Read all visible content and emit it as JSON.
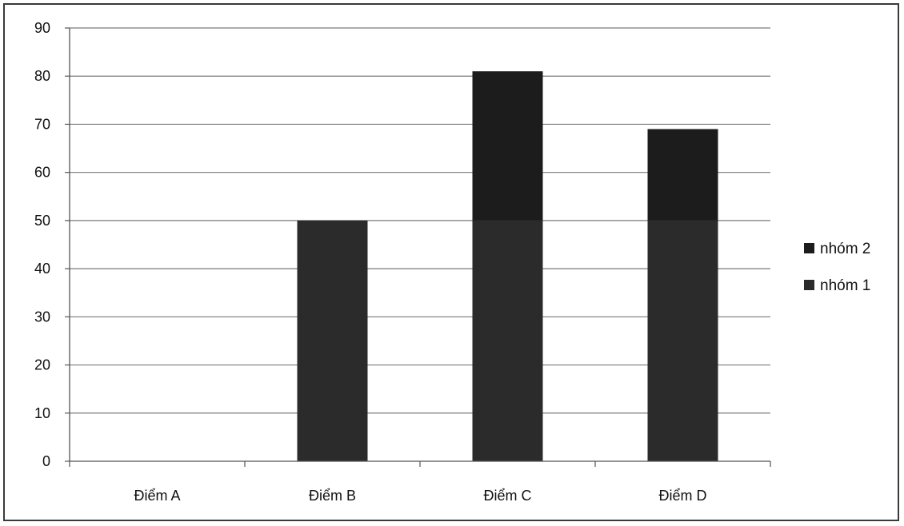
{
  "chart_data": {
    "type": "bar",
    "stacked": true,
    "categories": [
      "Điểm A",
      "Điểm B",
      "Điểm C",
      "Điểm D"
    ],
    "series": [
      {
        "name": "nhóm 1",
        "values": [
          0,
          50,
          50,
          50
        ],
        "color": "#2b2b2b"
      },
      {
        "name": "nhóm 2",
        "values": [
          0,
          0,
          31,
          19
        ],
        "color": "#1c1c1c"
      }
    ],
    "legend_order": [
      "nhóm 2",
      "nhóm 1"
    ],
    "ylim": [
      0,
      90
    ],
    "yticks": [
      0,
      10,
      20,
      30,
      40,
      50,
      60,
      70,
      80,
      90
    ],
    "grid": true,
    "legend_position": "right",
    "title": "",
    "xlabel": "",
    "ylabel": ""
  }
}
